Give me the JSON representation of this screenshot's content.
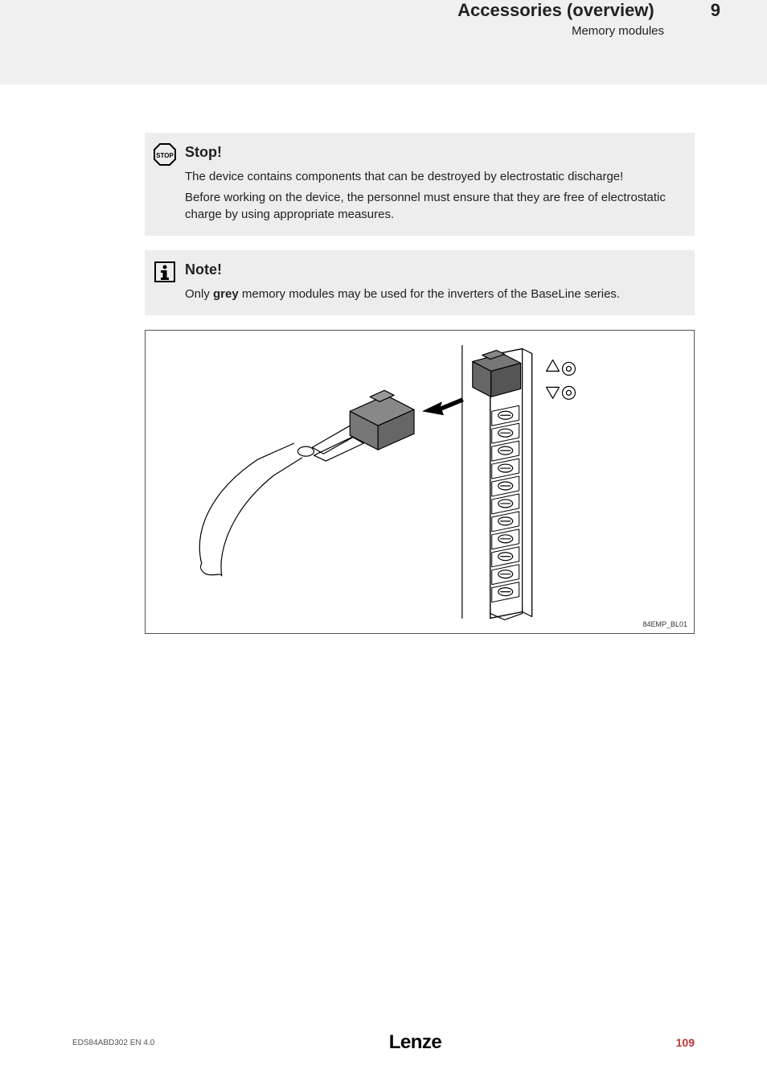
{
  "header": {
    "title": "Accessories (overview)",
    "subtitle": "Memory modules",
    "chapter": "9"
  },
  "callouts": [
    {
      "icon": "stop",
      "title": "Stop!",
      "paragraphs": [
        "The device contains components that can be destroyed by electrostatic discharge!",
        "Before working on the device, the personnel must ensure that they are free of electrostatic charge by using appropriate measures."
      ]
    },
    {
      "icon": "info",
      "title": "Note!",
      "paragraphs_rich": [
        {
          "pre": "Only ",
          "bold": "grey",
          "post": " memory modules may be used for the inverters of the BaseLine series."
        }
      ]
    }
  ],
  "figure": {
    "ref": "84EMP_BL01",
    "type": "technical-line-drawing",
    "colors": {
      "stroke": "#000000",
      "fill": "#ffffff",
      "module_fill": "#888888"
    }
  },
  "footer": {
    "doc_id": "EDS84ABD302  EN  4.0",
    "logo": "Lenze",
    "page": "109"
  }
}
